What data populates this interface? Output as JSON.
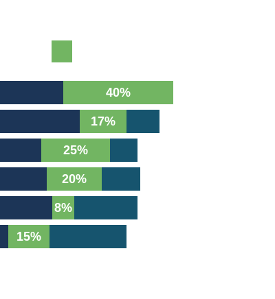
{
  "chart_data": {
    "type": "bar",
    "stacked": true,
    "orientation": "horizontal",
    "title": "",
    "xlabel": "",
    "ylabel": "",
    "legend": {
      "placement": "top-left",
      "entries": [
        {
          "color": "#72b562"
        }
      ]
    },
    "series": [
      {
        "values": [
          23,
          29,
          15,
          17,
          19,
          3
        ],
        "color": "#1c3557",
        "show_labels": false
      },
      {
        "values": [
          40,
          17,
          25,
          20,
          8,
          15
        ],
        "color": "#72b562",
        "show_labels": true,
        "label_suffix": "%"
      },
      {
        "values": [
          0,
          12,
          10,
          14,
          23,
          28
        ],
        "color": "#16546e",
        "show_labels": false
      }
    ],
    "xlim": [
      0,
      100
    ]
  }
}
